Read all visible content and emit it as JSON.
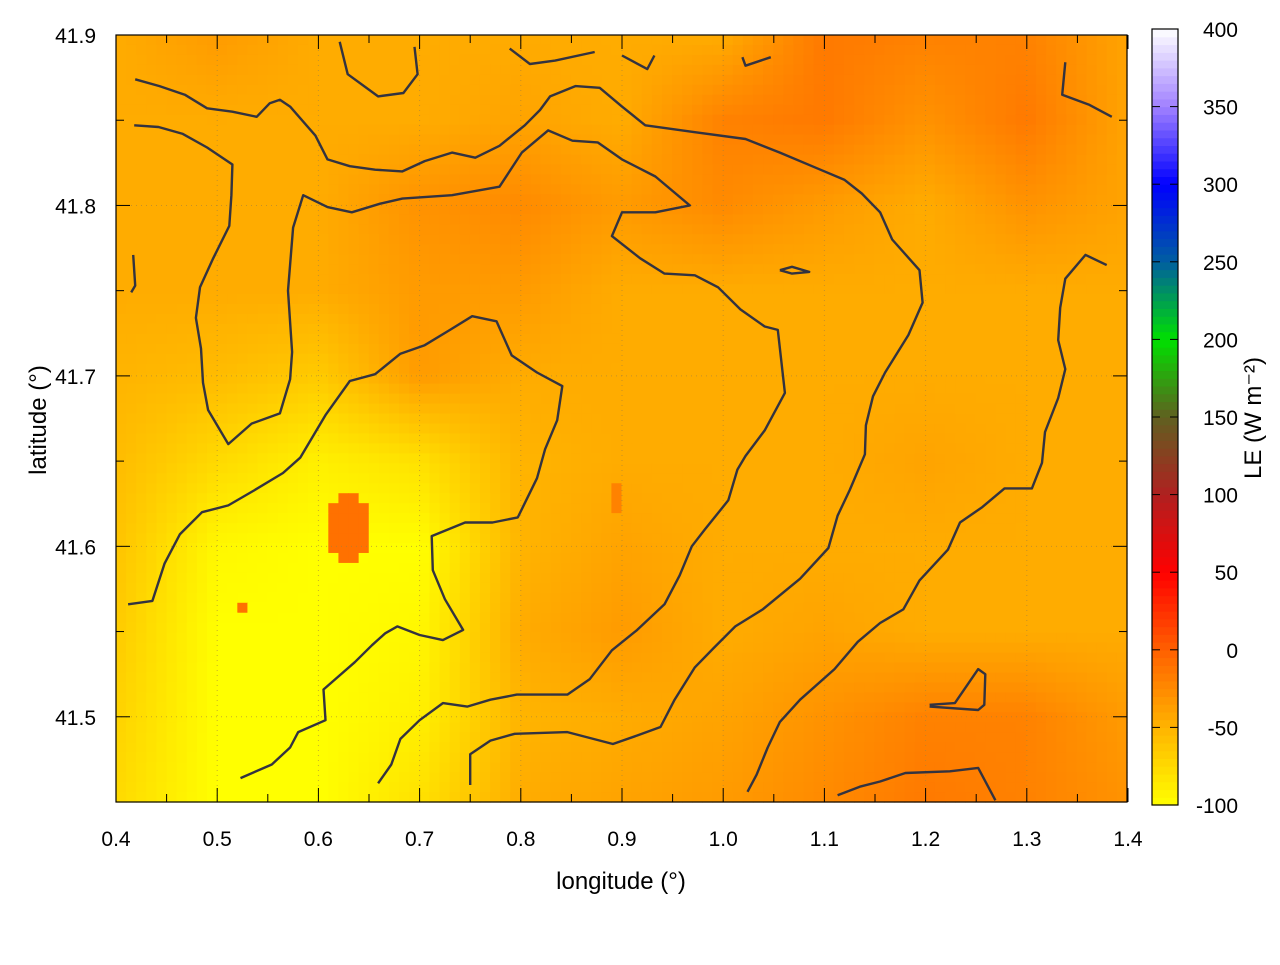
{
  "chart_data": {
    "type": "heatmap",
    "xlabel": "longitude (°)",
    "ylabel": "latitude (°)",
    "colorbar_label": "LE (W m⁻²)",
    "xlim": [
      0.4,
      1.4
    ],
    "ylim": [
      41.45,
      41.9
    ],
    "clim": [
      -100,
      400
    ],
    "xticks": [
      "0.4",
      "0.5",
      "0.6",
      "0.7",
      "0.8",
      "0.9",
      "1.0",
      "1.1",
      "1.2",
      "1.3",
      "1.4"
    ],
    "yticks": [
      "41.5",
      "41.6",
      "41.7",
      "41.8",
      "41.9"
    ],
    "cticks": [
      "-100",
      "-50",
      "0",
      "50",
      "100",
      "150",
      "200",
      "250",
      "300",
      "350",
      "400"
    ],
    "grid": true,
    "colormap": [
      {
        "value": -100,
        "color": "#ffff00"
      },
      {
        "value": -50,
        "color": "#ffb400"
      },
      {
        "value": 0,
        "color": "#ff6000"
      },
      {
        "value": 50,
        "color": "#ff0000"
      },
      {
        "value": 100,
        "color": "#b02020"
      },
      {
        "value": 150,
        "color": "#606020"
      },
      {
        "value": 200,
        "color": "#00e000"
      },
      {
        "value": 250,
        "color": "#005fa0"
      },
      {
        "value": 300,
        "color": "#0000ff"
      },
      {
        "value": 350,
        "color": "#a080ff"
      },
      {
        "value": 400,
        "color": "#ffffff"
      }
    ],
    "grid_lon": [
      0.4,
      0.5,
      0.6,
      0.7,
      0.8,
      0.9,
      1.0,
      1.1,
      1.2,
      1.3,
      1.4
    ],
    "grid_lat": [
      41.9,
      41.85,
      41.8,
      41.75,
      41.7,
      41.65,
      41.6,
      41.55,
      41.5,
      41.45
    ],
    "values": [
      [
        -45,
        -35,
        -45,
        -45,
        -45,
        -45,
        -45,
        -15,
        -20,
        -20,
        -40
      ],
      [
        -45,
        -45,
        -45,
        -45,
        -40,
        -45,
        -20,
        -15,
        -30,
        -15,
        -40
      ],
      [
        -45,
        -45,
        -45,
        -30,
        -25,
        -35,
        -25,
        -35,
        -45,
        -30,
        -40
      ],
      [
        -45,
        -45,
        -45,
        -35,
        -35,
        -45,
        -45,
        -45,
        -45,
        -45,
        -45
      ],
      [
        -50,
        -55,
        -65,
        -35,
        -45,
        -45,
        -45,
        -45,
        -45,
        -45,
        -45
      ],
      [
        -55,
        -75,
        -90,
        -80,
        -50,
        -45,
        -45,
        -45,
        -40,
        -45,
        -45
      ],
      [
        -60,
        -95,
        -100,
        -100,
        -50,
        -40,
        -45,
        -45,
        -45,
        -45,
        -45
      ],
      [
        -65,
        -100,
        -100,
        -95,
        -45,
        -35,
        -45,
        -40,
        -45,
        -45,
        -45
      ],
      [
        -70,
        -100,
        -100,
        -90,
        -50,
        -45,
        -40,
        -30,
        -20,
        -20,
        -35
      ],
      [
        -75,
        -100,
        -100,
        -80,
        -45,
        -40,
        -35,
        -25,
        -15,
        -20,
        -30
      ]
    ],
    "patches": [
      {
        "lon": 0.63,
        "lat": 41.61,
        "radius": 0.025,
        "value": -10
      },
      {
        "lon": 0.895,
        "lat": 41.627,
        "radius": 0.01,
        "value": -20
      },
      {
        "lon": 0.525,
        "lat": 41.565,
        "radius": 0.006,
        "value": -10
      }
    ],
    "contours": [
      [
        [
          0.419,
          41.874
        ],
        [
          0.443,
          41.87
        ],
        [
          0.468,
          41.865
        ],
        [
          0.49,
          41.857
        ],
        [
          0.515,
          41.855
        ],
        [
          0.539,
          41.852
        ],
        [
          0.552,
          41.86
        ],
        [
          0.562,
          41.862
        ],
        [
          0.572,
          41.858
        ],
        [
          0.597,
          41.841
        ],
        [
          0.609,
          41.827
        ],
        [
          0.631,
          41.823
        ],
        [
          0.656,
          41.821
        ],
        [
          0.683,
          41.82
        ],
        [
          0.705,
          41.826
        ],
        [
          0.732,
          41.831
        ],
        [
          0.755,
          41.828
        ],
        [
          0.779,
          41.835
        ],
        [
          0.804,
          41.847
        ],
        [
          0.819,
          41.856
        ],
        [
          0.829,
          41.864
        ],
        [
          0.854,
          41.87
        ],
        [
          0.878,
          41.869
        ],
        [
          0.9,
          41.858
        ],
        [
          0.923,
          41.847
        ],
        [
          0.972,
          41.843
        ],
        [
          1.022,
          41.839
        ],
        [
          1.056,
          41.831
        ],
        [
          1.096,
          41.821
        ],
        [
          1.12,
          41.815
        ],
        [
          1.137,
          41.807
        ],
        [
          1.155,
          41.796
        ],
        [
          1.167,
          41.78
        ],
        [
          1.194,
          41.762
        ],
        [
          1.197,
          41.743
        ],
        [
          1.183,
          41.724
        ],
        [
          1.16,
          41.702
        ],
        [
          1.148,
          41.688
        ],
        [
          1.141,
          41.671
        ],
        [
          1.14,
          41.654
        ],
        [
          1.125,
          41.633
        ],
        [
          1.113,
          41.618
        ],
        [
          1.104,
          41.599
        ],
        [
          1.076,
          41.581
        ],
        [
          1.039,
          41.563
        ],
        [
          1.012,
          41.553
        ],
        [
          0.99,
          41.54
        ],
        [
          0.972,
          41.529
        ],
        [
          0.952,
          41.51
        ],
        [
          0.938,
          41.494
        ],
        [
          0.915,
          41.489
        ],
        [
          0.891,
          41.484
        ],
        [
          0.846,
          41.491
        ],
        [
          0.794,
          41.49
        ],
        [
          0.77,
          41.486
        ],
        [
          0.75,
          41.478
        ],
        [
          0.75,
          41.46
        ]
      ],
      [
        [
          0.418,
          41.847
        ],
        [
          0.442,
          41.846
        ],
        [
          0.466,
          41.842
        ],
        [
          0.49,
          41.834
        ],
        [
          0.515,
          41.824
        ],
        [
          0.514,
          41.806
        ],
        [
          0.512,
          41.788
        ],
        [
          0.496,
          41.769
        ],
        [
          0.483,
          41.752
        ],
        [
          0.479,
          41.734
        ],
        [
          0.484,
          41.716
        ],
        [
          0.486,
          41.696
        ],
        [
          0.491,
          41.68
        ],
        [
          0.511,
          41.66
        ],
        [
          0.534,
          41.672
        ],
        [
          0.562,
          41.678
        ],
        [
          0.572,
          41.698
        ],
        [
          0.574,
          41.714
        ],
        [
          0.57,
          41.75
        ],
        [
          0.575,
          41.787
        ],
        [
          0.585,
          41.806
        ],
        [
          0.609,
          41.799
        ],
        [
          0.633,
          41.796
        ],
        [
          0.661,
          41.801
        ],
        [
          0.683,
          41.804
        ],
        [
          0.732,
          41.806
        ],
        [
          0.779,
          41.811
        ],
        [
          0.801,
          41.831
        ],
        [
          0.827,
          41.844
        ],
        [
          0.851,
          41.838
        ],
        [
          0.876,
          41.837
        ],
        [
          0.9,
          41.827
        ],
        [
          0.933,
          41.817
        ],
        [
          0.967,
          41.8
        ],
        [
          0.933,
          41.796
        ],
        [
          0.9,
          41.796
        ],
        [
          0.89,
          41.782
        ],
        [
          0.918,
          41.769
        ],
        [
          0.942,
          41.76
        ],
        [
          0.972,
          41.759
        ],
        [
          0.995,
          41.752
        ],
        [
          1.017,
          41.739
        ],
        [
          1.041,
          41.729
        ],
        [
          1.054,
          41.727
        ],
        [
          1.061,
          41.69
        ],
        [
          1.041,
          41.668
        ],
        [
          1.022,
          41.653
        ],
        [
          1.014,
          41.645
        ],
        [
          1.005,
          41.627
        ],
        [
          0.982,
          41.61
        ],
        [
          0.969,
          41.6
        ],
        [
          0.957,
          41.583
        ],
        [
          0.942,
          41.566
        ],
        [
          0.915,
          41.551
        ],
        [
          0.89,
          41.539
        ],
        [
          0.868,
          41.522
        ],
        [
          0.846,
          41.513
        ],
        [
          0.796,
          41.513
        ],
        [
          0.77,
          41.51
        ],
        [
          0.747,
          41.506
        ],
        [
          0.723,
          41.508
        ],
        [
          0.7,
          41.498
        ],
        [
          0.681,
          41.487
        ],
        [
          0.672,
          41.472
        ],
        [
          0.659,
          41.461
        ]
      ],
      [
        [
          0.412,
          41.566
        ],
        [
          0.436,
          41.568
        ],
        [
          0.448,
          41.59
        ],
        [
          0.463,
          41.607
        ],
        [
          0.485,
          41.62
        ],
        [
          0.511,
          41.624
        ],
        [
          0.537,
          41.633
        ],
        [
          0.565,
          41.643
        ],
        [
          0.582,
          41.652
        ],
        [
          0.607,
          41.677
        ],
        [
          0.631,
          41.697
        ],
        [
          0.656,
          41.701
        ],
        [
          0.681,
          41.713
        ],
        [
          0.705,
          41.718
        ],
        [
          0.73,
          41.727
        ],
        [
          0.752,
          41.735
        ],
        [
          0.776,
          41.732
        ],
        [
          0.791,
          41.712
        ],
        [
          0.816,
          41.702
        ],
        [
          0.841,
          41.694
        ],
        [
          0.836,
          41.674
        ],
        [
          0.824,
          41.657
        ],
        [
          0.816,
          41.64
        ],
        [
          0.797,
          41.617
        ],
        [
          0.772,
          41.614
        ],
        [
          0.745,
          41.614
        ],
        [
          0.712,
          41.606
        ],
        [
          0.713,
          41.586
        ],
        [
          0.725,
          41.569
        ],
        [
          0.743,
          41.551
        ],
        [
          0.723,
          41.545
        ],
        [
          0.7,
          41.548
        ],
        [
          0.678,
          41.553
        ],
        [
          0.666,
          41.549
        ],
        [
          0.653,
          41.542
        ],
        [
          0.636,
          41.532
        ],
        [
          0.605,
          41.516
        ],
        [
          0.607,
          41.498
        ],
        [
          0.58,
          41.491
        ],
        [
          0.572,
          41.482
        ],
        [
          0.554,
          41.472
        ],
        [
          0.523,
          41.464
        ]
      ],
      [
        [
          1.379,
          41.765
        ],
        [
          1.358,
          41.771
        ],
        [
          1.338,
          41.757
        ],
        [
          1.333,
          41.74
        ],
        [
          1.331,
          41.721
        ],
        [
          1.338,
          41.704
        ],
        [
          1.331,
          41.687
        ],
        [
          1.318,
          41.667
        ],
        [
          1.315,
          41.649
        ],
        [
          1.305,
          41.634
        ],
        [
          1.278,
          41.634
        ],
        [
          1.256,
          41.623
        ],
        [
          1.234,
          41.614
        ],
        [
          1.222,
          41.598
        ],
        [
          1.194,
          41.58
        ],
        [
          1.178,
          41.563
        ],
        [
          1.155,
          41.555
        ],
        [
          1.133,
          41.544
        ],
        [
          1.11,
          41.528
        ],
        [
          1.076,
          41.51
        ],
        [
          1.056,
          41.497
        ],
        [
          1.044,
          41.482
        ],
        [
          1.033,
          41.466
        ],
        [
          1.024,
          41.456
        ]
      ],
      [
        [
          1.113,
          41.454
        ],
        [
          1.135,
          41.459
        ],
        [
          1.155,
          41.462
        ],
        [
          1.18,
          41.467
        ],
        [
          1.224,
          41.468
        ],
        [
          1.252,
          41.47
        ],
        [
          1.269,
          41.451
        ]
      ],
      [
        [
          1.204,
          41.507
        ],
        [
          1.229,
          41.508
        ],
        [
          1.252,
          41.528
        ],
        [
          1.259,
          41.525
        ],
        [
          1.258,
          41.507
        ],
        [
          1.252,
          41.504
        ],
        [
          1.204,
          41.506
        ]
      ],
      [
        [
          0.621,
          41.896
        ],
        [
          0.629,
          41.877
        ],
        [
          0.659,
          41.864
        ],
        [
          0.684,
          41.866
        ],
        [
          0.698,
          41.877
        ],
        [
          0.695,
          41.893
        ]
      ],
      [
        [
          0.789,
          41.892
        ],
        [
          0.809,
          41.883
        ],
        [
          0.834,
          41.885
        ],
        [
          0.873,
          41.89
        ]
      ],
      [
        [
          0.9,
          41.888
        ],
        [
          0.925,
          41.88
        ],
        [
          0.932,
          41.888
        ]
      ],
      [
        [
          1.019,
          41.887
        ],
        [
          1.022,
          41.882
        ],
        [
          1.047,
          41.887
        ]
      ],
      [
        [
          1.338,
          41.884
        ],
        [
          1.335,
          41.865
        ],
        [
          1.362,
          41.859
        ],
        [
          1.384,
          41.852
        ]
      ],
      [
        [
          0.417,
          41.771
        ],
        [
          0.419,
          41.753
        ],
        [
          0.415,
          41.749
        ]
      ],
      [
        [
          1.056,
          41.762
        ],
        [
          1.068,
          41.764
        ],
        [
          1.085,
          41.761
        ],
        [
          1.068,
          41.76
        ],
        [
          1.056,
          41.762
        ]
      ]
    ]
  }
}
